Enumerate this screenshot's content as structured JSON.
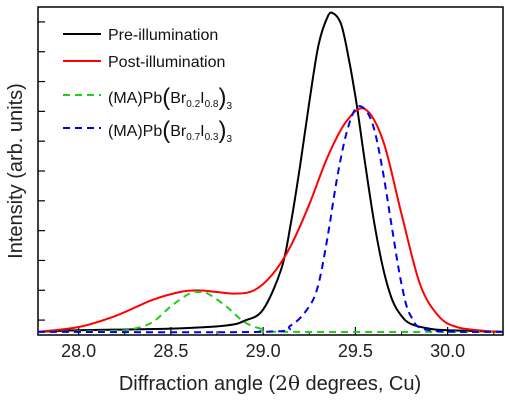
{
  "chart_data": {
    "type": "line",
    "xlabel": "Diffraction angle (",
    "xlabel_theta": "2θ",
    "xlabel_rest": " degrees, Cu)",
    "ylabel": "Intensity (arb. units)",
    "xlim": [
      27.78,
      30.3
    ],
    "ylim": [
      -0.01,
      1.02
    ],
    "xticks": [
      28.0,
      28.5,
      29.0,
      29.5,
      30.0
    ],
    "xtick_labels": [
      "28.0",
      "28.5",
      "29.0",
      "29.5",
      "30.0"
    ],
    "yticks_count": 11,
    "grid": false,
    "legend_position": "top-left",
    "series": [
      {
        "name": "Pre-illumination",
        "color": "#000000",
        "style": "solid",
        "x": [
          27.78,
          28.0,
          28.5,
          28.8,
          28.9,
          29.0,
          29.1,
          29.15,
          29.2,
          29.25,
          29.3,
          29.35,
          29.38,
          29.42,
          29.45,
          29.5,
          29.55,
          29.6,
          29.65,
          29.7,
          29.75,
          29.8,
          29.9,
          30.0,
          30.3
        ],
        "y": [
          0.0,
          0.005,
          0.01,
          0.02,
          0.035,
          0.07,
          0.2,
          0.34,
          0.52,
          0.72,
          0.9,
          0.99,
          1.0,
          0.97,
          0.9,
          0.74,
          0.54,
          0.35,
          0.2,
          0.1,
          0.05,
          0.025,
          0.01,
          0.005,
          0.0
        ]
      },
      {
        "name": "Post-illumination",
        "color": "#ff0000",
        "style": "solid",
        "x": [
          27.78,
          28.0,
          28.2,
          28.4,
          28.55,
          28.65,
          28.75,
          28.85,
          28.95,
          29.05,
          29.15,
          29.25,
          29.35,
          29.45,
          29.55,
          29.65,
          29.75,
          29.85,
          29.95,
          30.05,
          30.2,
          30.3
        ],
        "y": [
          0.0,
          0.015,
          0.05,
          0.1,
          0.125,
          0.13,
          0.125,
          0.12,
          0.13,
          0.18,
          0.27,
          0.4,
          0.55,
          0.66,
          0.7,
          0.6,
          0.37,
          0.15,
          0.05,
          0.015,
          0.003,
          0.0
        ]
      },
      {
        "name": "(MA)Pb(Br0.2I0.8)3",
        "color": "#22cc22",
        "style": "dashed",
        "x": [
          27.78,
          28.2,
          28.3,
          28.4,
          28.5,
          28.6,
          28.65,
          28.7,
          28.8,
          28.9,
          29.0,
          29.1,
          30.3
        ],
        "y": [
          0.0,
          0.003,
          0.01,
          0.03,
          0.08,
          0.12,
          0.125,
          0.12,
          0.08,
          0.03,
          0.008,
          0.0,
          0.0
        ]
      },
      {
        "name": "(MA)Pb(Br0.7I0.3)3",
        "color": "#0000ee",
        "style": "dashed",
        "x": [
          27.78,
          29.0,
          29.15,
          29.25,
          29.3,
          29.35,
          29.4,
          29.45,
          29.5,
          29.55,
          29.6,
          29.65,
          29.7,
          29.75,
          29.8,
          29.9,
          30.3
        ],
        "y": [
          0.0,
          0.0,
          0.02,
          0.08,
          0.15,
          0.3,
          0.48,
          0.62,
          0.7,
          0.7,
          0.64,
          0.5,
          0.32,
          0.15,
          0.05,
          0.005,
          0.0
        ]
      }
    ]
  },
  "legend": [
    {
      "label": "Pre-illumination"
    },
    {
      "label": "Post-illumination"
    },
    {
      "pre": "(MA)Pb",
      "br": "Br",
      "br_sub": "0.2",
      "i": "I",
      "i_sub": "0.8",
      "outer_sub": "3"
    },
    {
      "pre": "(MA)Pb",
      "br": "Br",
      "br_sub": "0.7",
      "i": "I",
      "i_sub": "0.3",
      "outer_sub": "3"
    }
  ]
}
